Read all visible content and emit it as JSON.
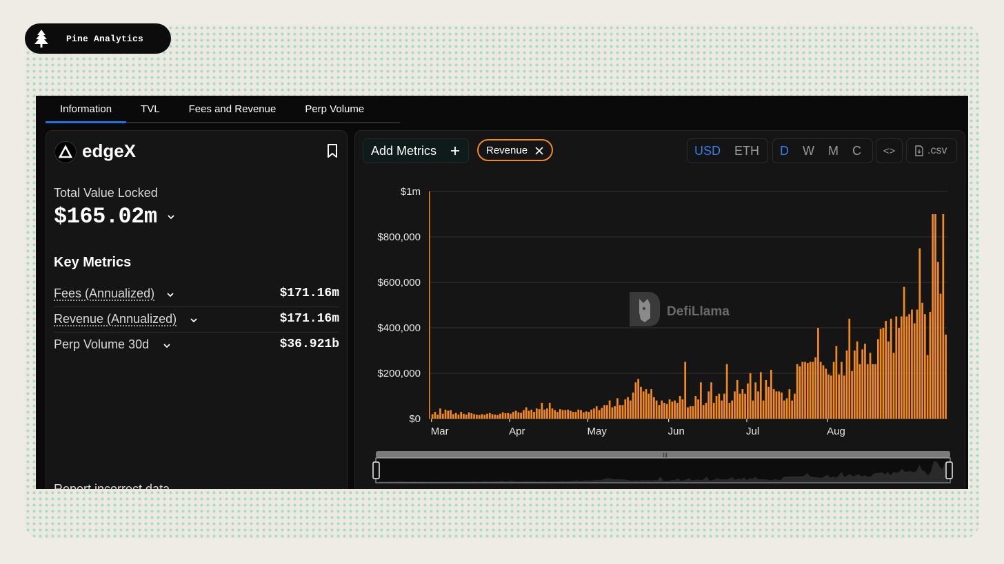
{
  "brand": {
    "name": "Pine Analytics",
    "logo_icon": "pine-tree-icon"
  },
  "tabs": [
    {
      "label": "Information",
      "active": true
    },
    {
      "label": "TVL",
      "active": false
    },
    {
      "label": "Fees and Revenue",
      "active": false
    },
    {
      "label": "Perp Volume",
      "active": false
    }
  ],
  "protocol": {
    "name": "edgeX",
    "tvl_label": "Total Value Locked",
    "tvl_value": "$165.02m"
  },
  "key_metrics": {
    "title": "Key Metrics",
    "items": [
      {
        "label": "Fees (Annualized)",
        "value": "$171.16m"
      },
      {
        "label": "Revenue (Annualized)",
        "value": "$171.16m"
      },
      {
        "label": "Perp Volume 30d",
        "value": "$36.921b"
      }
    ],
    "report_link": "Report incorrect data"
  },
  "toolbar": {
    "add_metrics": "Add Metrics",
    "active_metric": "Revenue",
    "currencies": [
      "USD",
      "ETH"
    ],
    "currency_selected": "USD",
    "periods": [
      "D",
      "W",
      "M",
      "C"
    ],
    "period_selected": "D",
    "embed_label": "<>",
    "csv_label": ".csv"
  },
  "watermark": "DefiLlama",
  "colors": {
    "accent": "#2172e5",
    "bar": "#f28a1e",
    "panel": "#151515"
  },
  "chart_data": {
    "type": "bar",
    "title": "",
    "series": [
      {
        "name": "Revenue",
        "color": "#f28a1e"
      }
    ],
    "y_ticks": [
      "$0",
      "$200,000",
      "$400,000",
      "$600,000",
      "$800,000",
      "$1m"
    ],
    "ylim": [
      0,
      1000000
    ],
    "x_ticks": [
      "Mar",
      "Apr",
      "May",
      "Jun",
      "Jul",
      "Aug"
    ],
    "x_tick_days": [
      1,
      31,
      61,
      92,
      122,
      153
    ],
    "start_date": "2025-02-25",
    "grid": true,
    "values": [
      1000000,
      20000,
      30000,
      18000,
      45000,
      22000,
      40000,
      35000,
      38000,
      20000,
      25000,
      18000,
      30000,
      22000,
      18000,
      28000,
      24000,
      20000,
      18000,
      16000,
      20000,
      17000,
      22000,
      25000,
      20000,
      18000,
      16000,
      22000,
      28000,
      24000,
      25000,
      22000,
      30000,
      35000,
      28000,
      26000,
      38000,
      50000,
      35000,
      40000,
      30000,
      45000,
      42000,
      70000,
      40000,
      45000,
      70000,
      45000,
      38000,
      30000,
      42000,
      38000,
      38000,
      40000,
      35000,
      30000,
      30000,
      40000,
      38000,
      28000,
      32000,
      30000,
      40000,
      45000,
      55000,
      38000,
      48000,
      60000,
      60000,
      80000,
      50000,
      55000,
      90000,
      60000,
      60000,
      85000,
      95000,
      80000,
      115000,
      160000,
      175000,
      140000,
      120000,
      130000,
      110000,
      130000,
      95000,
      80000,
      60000,
      80000,
      70000,
      65000,
      85000,
      75000,
      80000,
      70000,
      100000,
      85000,
      250000,
      50000,
      55000,
      55000,
      100000,
      85000,
      160000,
      60000,
      70000,
      120000,
      160000,
      70000,
      100000,
      110000,
      80000,
      110000,
      240000,
      70000,
      80000,
      120000,
      170000,
      110000,
      130000,
      110000,
      155000,
      200000,
      80000,
      160000,
      120000,
      205000,
      80000,
      170000,
      140000,
      215000,
      130000,
      120000,
      120000,
      115000,
      80000,
      90000,
      130000,
      80000,
      110000,
      240000,
      230000,
      250000,
      250000,
      245000,
      250000,
      250000,
      270000,
      400000,
      250000,
      235000,
      220000,
      195000,
      190000,
      250000,
      320000,
      195000,
      250000,
      190000,
      300000,
      440000,
      210000,
      300000,
      340000,
      240000,
      305000,
      330000,
      240000,
      290000,
      240000,
      240000,
      350000,
      395000,
      400000,
      430000,
      340000,
      440000,
      290000,
      450000,
      400000,
      450000,
      580000,
      450000,
      460000,
      480000,
      420000,
      480000,
      750000,
      510000,
      460000,
      280000,
      470000,
      900000,
      900000,
      690000,
      550000,
      900000,
      370000
    ]
  }
}
